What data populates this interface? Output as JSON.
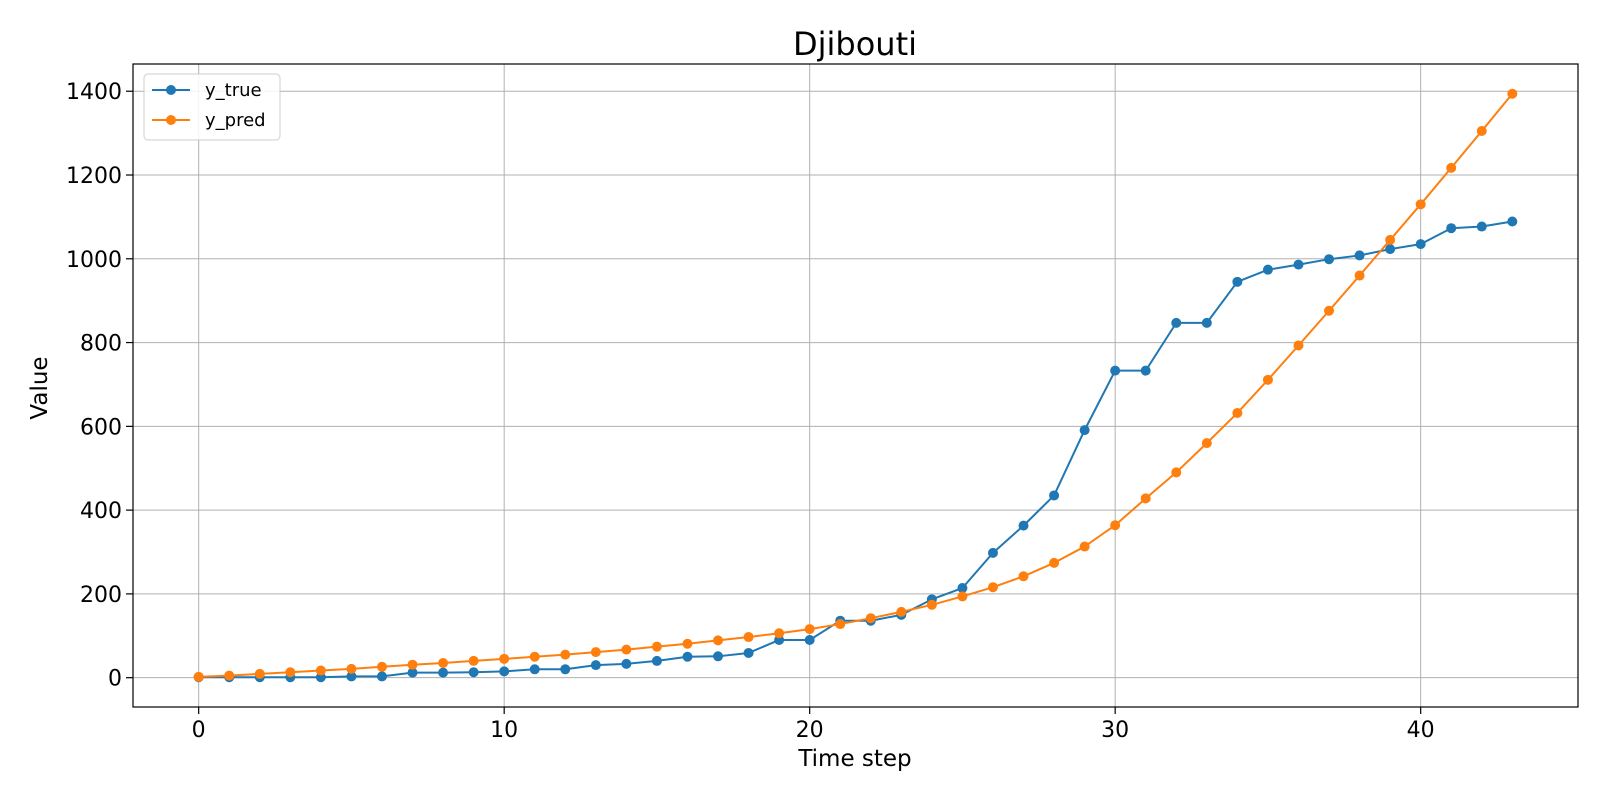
{
  "chart_data": {
    "type": "line",
    "title": "Djibouti",
    "xlabel": "Time step",
    "ylabel": "Value",
    "xlim": [
      -2.15,
      45.15
    ],
    "ylim": [
      -70,
      1465
    ],
    "xticks": [
      0,
      10,
      20,
      30,
      40
    ],
    "yticks": [
      0,
      200,
      400,
      600,
      800,
      1000,
      1200,
      1400
    ],
    "grid": true,
    "legend_position": "top-left",
    "x": [
      0,
      1,
      2,
      3,
      4,
      5,
      6,
      7,
      8,
      9,
      10,
      11,
      12,
      13,
      14,
      15,
      16,
      17,
      18,
      19,
      20,
      21,
      22,
      23,
      24,
      25,
      26,
      27,
      28,
      29,
      30,
      31,
      32,
      33,
      34,
      35,
      36,
      37,
      38,
      39,
      40,
      41,
      42,
      43
    ],
    "series": [
      {
        "name": "y_true",
        "color": "#1f77b4",
        "values": [
          1,
          1,
          1,
          1,
          1,
          3,
          3,
          12,
          12,
          13,
          15,
          20,
          20,
          30,
          33,
          40,
          50,
          51,
          59,
          90,
          90,
          136,
          136,
          150,
          187,
          214,
          298,
          363,
          435,
          591,
          733,
          733,
          847,
          847,
          945,
          974,
          986,
          999,
          1008,
          1023,
          1035,
          1073,
          1077,
          1089
        ]
      },
      {
        "name": "y_pred",
        "color": "#ff7f0e",
        "values": [
          2,
          5,
          9,
          13,
          17,
          21,
          26,
          31,
          35,
          40,
          45,
          50,
          55,
          61,
          67,
          74,
          81,
          89,
          97,
          106,
          116,
          128,
          142,
          157,
          174,
          194,
          216,
          242,
          274,
          313,
          364,
          428,
          490,
          560,
          632,
          711,
          793,
          876,
          960,
          1045,
          1130,
          1217,
          1305,
          1394
        ]
      }
    ]
  }
}
